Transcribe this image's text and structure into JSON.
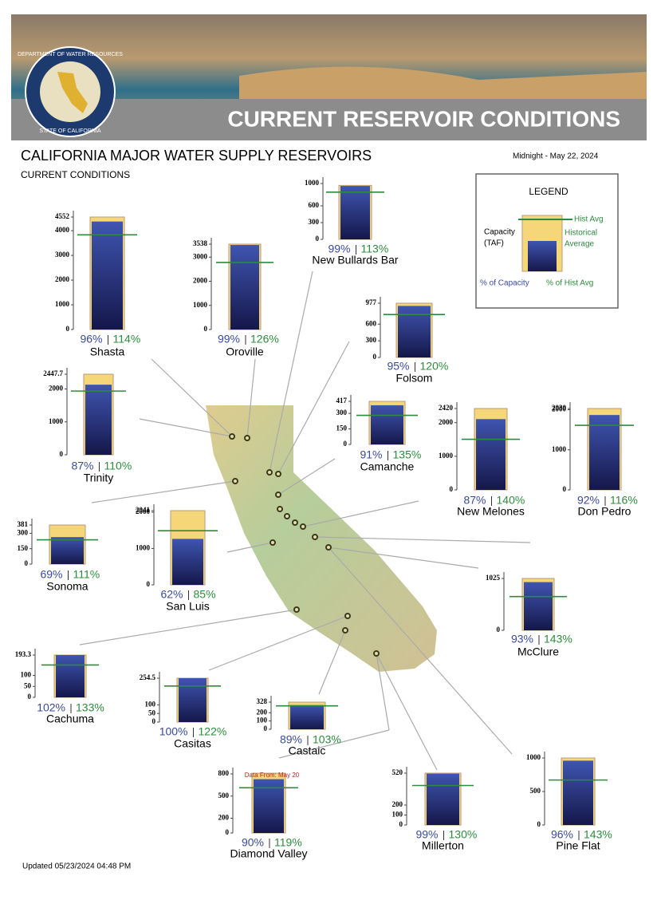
{
  "header": {
    "banner_title": "CURRENT RESERVOIR CONDITIONS",
    "seal_top": "DEPARTMENT OF WATER RESOURCES",
    "seal_bottom": "STATE OF CALIFORNIA"
  },
  "title": "CALIFORNIA MAJOR WATER SUPPLY RESERVOIRS",
  "subtitle": "CURRENT CONDITIONS",
  "date": "Midnight - May 22, 2024",
  "legend": {
    "title": "LEGEND",
    "capacity": [
      "Capacity",
      "(TAF)"
    ],
    "hist_avg": "Hist Avg",
    "historical": [
      "Historical",
      "Average"
    ],
    "pct_capacity": "% of Capacity",
    "pct_hist": "% of Hist Avg"
  },
  "updated": "Updated 05/23/2024 04:48 PM",
  "chart_data": [
    {
      "type": "bar",
      "title": "Shasta",
      "capacity": 4552,
      "storage": 4370,
      "hist_avg": 3833,
      "percent_labels": [
        "96%",
        "114%"
      ],
      "ylim": [
        0,
        4552
      ],
      "yticks": [
        0,
        1000,
        2000,
        3000,
        4000,
        4552
      ]
    },
    {
      "type": "bar",
      "title": "Oroville",
      "capacity": 3538,
      "storage": 3503,
      "hist_avg": 2780,
      "percent_labels": [
        "99%",
        "126%"
      ],
      "ylim": [
        0,
        3538
      ],
      "yticks": [
        0,
        1000,
        2000,
        3000,
        3538
      ]
    },
    {
      "type": "bar",
      "title": "New Bullards Bar",
      "capacity": 966,
      "storage": 956,
      "hist_avg": 846,
      "percent_labels": [
        "99%",
        "113%"
      ],
      "ylim": [
        0,
        1000
      ],
      "yticks": [
        0,
        300,
        600,
        1000
      ]
    },
    {
      "type": "bar",
      "title": "Folsom",
      "capacity": 977,
      "storage": 928,
      "hist_avg": 773,
      "percent_labels": [
        "95%",
        "120%"
      ],
      "ylim": [
        0,
        977
      ],
      "yticks": [
        0,
        300,
        600,
        977
      ]
    },
    {
      "type": "bar",
      "title": "Trinity",
      "capacity": 2447.7,
      "storage": 2130,
      "hist_avg": 1936,
      "percent_labels": [
        "87%",
        "110%"
      ],
      "ylim": [
        0,
        2447.7
      ],
      "yticks": [
        0,
        1000,
        2000,
        2447.7
      ]
    },
    {
      "type": "bar",
      "title": "Camanche",
      "capacity": 417,
      "storage": 379,
      "hist_avg": 281,
      "percent_labels": [
        "91%",
        "135%"
      ],
      "ylim": [
        0,
        417
      ],
      "yticks": [
        0,
        150,
        300,
        417
      ]
    },
    {
      "type": "bar",
      "title": "New Melones",
      "capacity": 2420,
      "storage": 2105,
      "hist_avg": 1504,
      "percent_labels": [
        "87%",
        "140%"
      ],
      "ylim": [
        0,
        2420
      ],
      "yticks": [
        0,
        1000,
        2000,
        2420
      ]
    },
    {
      "type": "bar",
      "title": "Don Pedro",
      "capacity": 2030,
      "storage": 1868,
      "hist_avg": 1610,
      "percent_labels": [
        "92%",
        "116%"
      ],
      "ylim": [
        0,
        2030
      ],
      "yticks": [
        0,
        1000,
        2000,
        2030
      ]
    },
    {
      "type": "bar",
      "title": "Sonoma",
      "capacity": 381,
      "storage": 263,
      "hist_avg": 237,
      "percent_labels": [
        "69%",
        "111%"
      ],
      "ylim": [
        0,
        381
      ],
      "yticks": [
        0,
        150,
        300,
        381
      ]
    },
    {
      "type": "bar",
      "title": "San Luis",
      "capacity": 2041,
      "storage": 1265,
      "hist_avg": 1489,
      "percent_labels": [
        "62%",
        "85%"
      ],
      "ylim": [
        0,
        2041
      ],
      "yticks": [
        0,
        1000,
        2000,
        2041
      ]
    },
    {
      "type": "bar",
      "title": "McClure",
      "capacity": 1025,
      "storage": 953,
      "hist_avg": 667,
      "percent_labels": [
        "93%",
        "143%"
      ],
      "ylim": [
        0,
        1025
      ],
      "yticks": [
        0,
        1025
      ]
    },
    {
      "type": "bar",
      "title": "Cachuma",
      "capacity": 193.3,
      "storage": 197,
      "hist_avg": 148,
      "percent_labels": [
        "102%",
        "133%"
      ],
      "ylim": [
        0,
        193.3
      ],
      "yticks": [
        0,
        50,
        100,
        193.3
      ]
    },
    {
      "type": "bar",
      "title": "Casitas",
      "capacity": 254.5,
      "storage": 254.5,
      "hist_avg": 209,
      "percent_labels": [
        "100%",
        "122%"
      ],
      "ylim": [
        0,
        254.5
      ],
      "yticks": [
        0,
        50,
        100,
        254.5
      ]
    },
    {
      "type": "bar",
      "title": "Castaic",
      "capacity": 328,
      "storage": 292,
      "hist_avg": 283,
      "percent_labels": [
        "89%",
        "103%"
      ],
      "ylim": [
        0,
        328
      ],
      "yticks": [
        0,
        100,
        200,
        328
      ]
    },
    {
      "type": "bar",
      "title": "Diamond Valley",
      "capacity": 810,
      "storage": 729,
      "hist_avg": 613,
      "percent_labels": [
        "90%",
        "119%"
      ],
      "ylim": [
        0,
        800
      ],
      "yticks": [
        0,
        200,
        500,
        800
      ],
      "annotation": "Data From: May 20"
    },
    {
      "type": "bar",
      "title": "Millerton",
      "capacity": 520,
      "storage": 515,
      "hist_avg": 396,
      "percent_labels": [
        "99%",
        "130%"
      ],
      "ylim": [
        0,
        520
      ],
      "yticks": [
        0,
        100,
        200,
        520
      ]
    },
    {
      "type": "bar",
      "title": "Pine Flat",
      "capacity": 1000,
      "storage": 960,
      "hist_avg": 671,
      "percent_labels": [
        "96%",
        "143%"
      ],
      "ylim": [
        0,
        1000
      ],
      "yticks": [
        0,
        500,
        1000
      ]
    }
  ]
}
